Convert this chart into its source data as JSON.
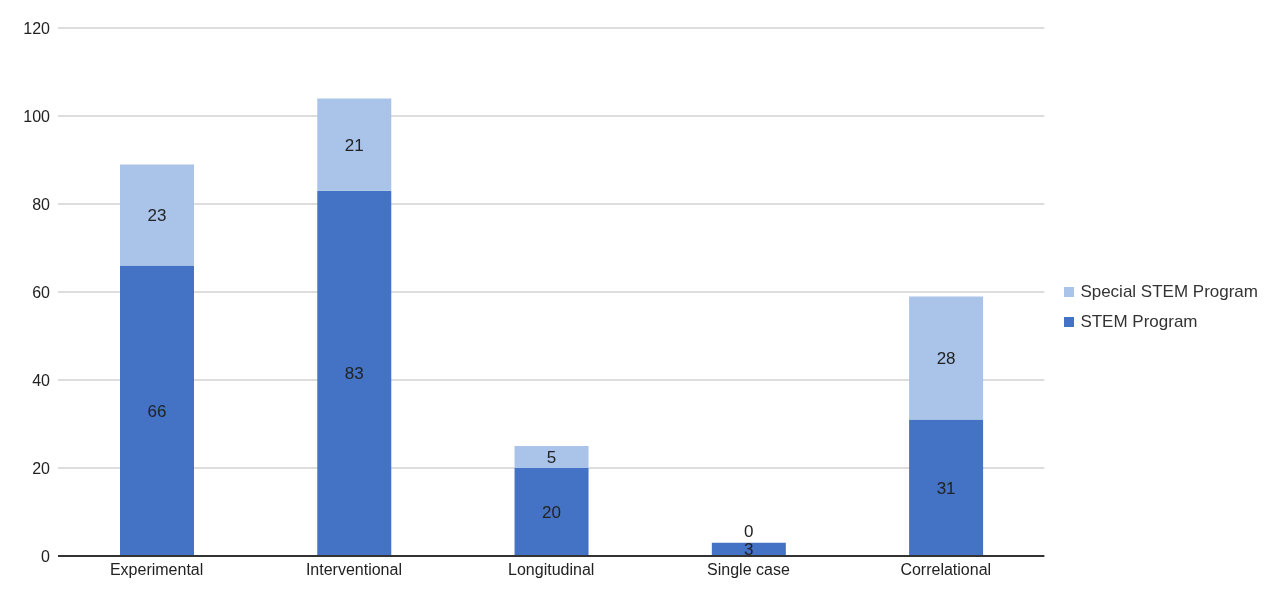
{
  "chart_data": {
    "type": "bar",
    "stacked": true,
    "categories": [
      "Experimental",
      "Interventional",
      "Longitudinal",
      "Single case",
      "Correlational"
    ],
    "series": [
      {
        "name": "STEM Program",
        "color": "#4472c4",
        "values": [
          66,
          83,
          20,
          3,
          31
        ]
      },
      {
        "name": "Special STEM Program",
        "color": "#a9c4e8",
        "values": [
          23,
          21,
          5,
          0,
          28
        ]
      }
    ],
    "ylim": [
      0,
      120
    ],
    "yticks": [
      0,
      20,
      40,
      60,
      80,
      100,
      120
    ],
    "grid": "y",
    "legend": "right",
    "data_labels": true
  }
}
